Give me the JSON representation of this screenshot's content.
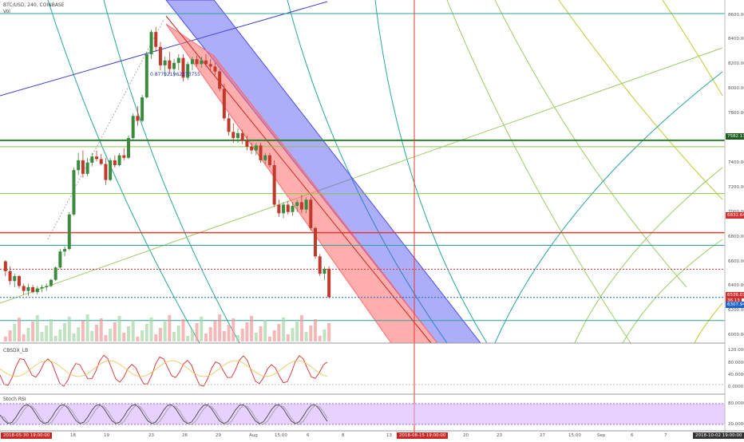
{
  "header": {
    "symbol_line": "BTC/USD, 240, COINBASE",
    "volume_label": "Vol"
  },
  "annotation": "0.877921962873755",
  "markers": {
    "crosshair_date": "2018-08-15 19:00:00",
    "start_date": "2018-05-30 19:00:00",
    "end_date": "2018-10-02 19:00:00"
  },
  "price_tags": [
    {
      "label": "7582.13",
      "color": "#1b5e20"
    },
    {
      "label": "6832.64",
      "color": "#d32f2f"
    },
    {
      "label": "6536.03",
      "color": "#d32f2f"
    },
    {
      "label": "36.13",
      "color": "#d32f2f"
    },
    {
      "label": "6307.94",
      "color": "#1e63c8"
    }
  ],
  "panes": {
    "cmo": {
      "label": "CBSDX_LB",
      "ticks": [
        "120.0000",
        "80.0000",
        "40.0000",
        "0.0000"
      ]
    },
    "rsi": {
      "label": "Stoch RSI",
      "ticks": [
        "80.0000",
        "20.0000"
      ]
    }
  },
  "colors": {
    "channel_blue": "#4a4cf2",
    "channel_red": "#ff6b6b",
    "hline_green": "#2e7d32",
    "hline_red": "#e53935",
    "up_candle": "#3b8a3e",
    "down_candle": "#c0392b",
    "rsi_band": "#d6b3ff"
  },
  "chart_data": {
    "type": "candlestick",
    "yticks": [
      "8600.00",
      "8400.00",
      "8200.00",
      "8000.00",
      "7800.00",
      "7600.00",
      "7400.00",
      "7200.00",
      "7000.00",
      "6800.00",
      "6600.00",
      "6400.00",
      "6200.00",
      "6000.00"
    ],
    "xticks": [
      "18",
      "19",
      "23",
      "26",
      "29",
      "Aug",
      "15:00",
      "6",
      "8",
      "13",
      "20",
      "23",
      "27",
      "15:00",
      "Sep",
      "6",
      "7"
    ],
    "ylim": [
      5950,
      8720
    ],
    "hlines": [
      {
        "value": 7582.13,
        "color": "#2e7d32",
        "width": 2
      },
      {
        "value": 7530,
        "color": "#8bc34a",
        "width": 1
      },
      {
        "value": 7150,
        "color": "#8bc34a",
        "width": 1
      },
      {
        "value": 6832.64,
        "color": "#e53935",
        "width": 1.5
      },
      {
        "value": 6730,
        "color": "#26a69a",
        "width": 1
      },
      {
        "value": 6536.03,
        "color": "#e53935",
        "width": 1,
        "dashed": true
      },
      {
        "value": 6307.94,
        "color": "#1e63c8",
        "width": 1,
        "dashed": true
      },
      {
        "value": 6120,
        "color": "#26a69a",
        "width": 1
      },
      {
        "value": 8610,
        "color": "#26a69a",
        "width": 1
      }
    ],
    "candles": [
      [
        6600,
        6610,
        6480,
        6520
      ],
      [
        6520,
        6560,
        6410,
        6440
      ],
      [
        6440,
        6500,
        6390,
        6480
      ],
      [
        6480,
        6490,
        6380,
        6400
      ],
      [
        6400,
        6420,
        6330,
        6360
      ],
      [
        6360,
        6420,
        6320,
        6390
      ],
      [
        6390,
        6410,
        6340,
        6350
      ],
      [
        6350,
        6400,
        6330,
        6380
      ],
      [
        6380,
        6410,
        6350,
        6390
      ],
      [
        6390,
        6420,
        6360,
        6400
      ],
      [
        6400,
        6460,
        6390,
        6450
      ],
      [
        6450,
        6560,
        6440,
        6550
      ],
      [
        6550,
        6700,
        6540,
        6680
      ],
      [
        6680,
        6720,
        6640,
        6700
      ],
      [
        6700,
        7000,
        6690,
        6980
      ],
      [
        6980,
        7360,
        6970,
        7340
      ],
      [
        7340,
        7480,
        7300,
        7420
      ],
      [
        7420,
        7500,
        7280,
        7310
      ],
      [
        7310,
        7440,
        7290,
        7400
      ],
      [
        7400,
        7480,
        7370,
        7450
      ],
      [
        7450,
        7500,
        7410,
        7430
      ],
      [
        7430,
        7470,
        7380,
        7390
      ],
      [
        7390,
        7440,
        7220,
        7260
      ],
      [
        7260,
        7440,
        7250,
        7420
      ],
      [
        7420,
        7460,
        7360,
        7380
      ],
      [
        7380,
        7480,
        7370,
        7460
      ],
      [
        7460,
        7520,
        7420,
        7440
      ],
      [
        7440,
        7620,
        7430,
        7600
      ],
      [
        7600,
        7800,
        7590,
        7780
      ],
      [
        7780,
        7860,
        7700,
        7740
      ],
      [
        7740,
        7950,
        7730,
        7930
      ],
      [
        7930,
        8300,
        7920,
        8280
      ],
      [
        8280,
        8480,
        8240,
        8460
      ],
      [
        8460,
        8500,
        8300,
        8340
      ],
      [
        8340,
        8380,
        8150,
        8190
      ],
      [
        8190,
        8260,
        8100,
        8230
      ],
      [
        8230,
        8300,
        8120,
        8160
      ],
      [
        8160,
        8240,
        8100,
        8210
      ],
      [
        8210,
        8280,
        8150,
        8250
      ],
      [
        8250,
        8280,
        8060,
        8090
      ],
      [
        8090,
        8220,
        8070,
        8200
      ],
      [
        8200,
        8260,
        8150,
        8240
      ],
      [
        8240,
        8270,
        8180,
        8200
      ],
      [
        8200,
        8260,
        8170,
        8230
      ],
      [
        8230,
        8280,
        8180,
        8200
      ],
      [
        8200,
        8240,
        8140,
        8180
      ],
      [
        8180,
        8210,
        8110,
        8140
      ],
      [
        8140,
        8160,
        7980,
        8000
      ],
      [
        8000,
        8040,
        7740,
        7760
      ],
      [
        7760,
        7800,
        7620,
        7650
      ],
      [
        7650,
        7720,
        7560,
        7600
      ],
      [
        7600,
        7680,
        7560,
        7640
      ],
      [
        7640,
        7670,
        7550,
        7580
      ],
      [
        7580,
        7620,
        7500,
        7530
      ],
      [
        7530,
        7560,
        7470,
        7500
      ],
      [
        7500,
        7560,
        7460,
        7540
      ],
      [
        7540,
        7560,
        7400,
        7420
      ],
      [
        7420,
        7480,
        7390,
        7460
      ],
      [
        7460,
        7480,
        7360,
        7380
      ],
      [
        7380,
        7420,
        7040,
        7060
      ],
      [
        7060,
        7100,
        6960,
        6990
      ],
      [
        6990,
        7080,
        6950,
        7060
      ],
      [
        7060,
        7090,
        6980,
        7000
      ],
      [
        7000,
        7080,
        6970,
        7050
      ],
      [
        7050,
        7100,
        7000,
        7080
      ],
      [
        7080,
        7140,
        6990,
        7020
      ],
      [
        7020,
        7120,
        6990,
        7100
      ],
      [
        7100,
        7120,
        6850,
        6870
      ],
      [
        6870,
        6880,
        6620,
        6640
      ],
      [
        6640,
        6660,
        6480,
        6500
      ],
      [
        6500,
        6560,
        6450,
        6540
      ],
      [
        6540,
        6560,
        6300,
        6310
      ]
    ]
  }
}
